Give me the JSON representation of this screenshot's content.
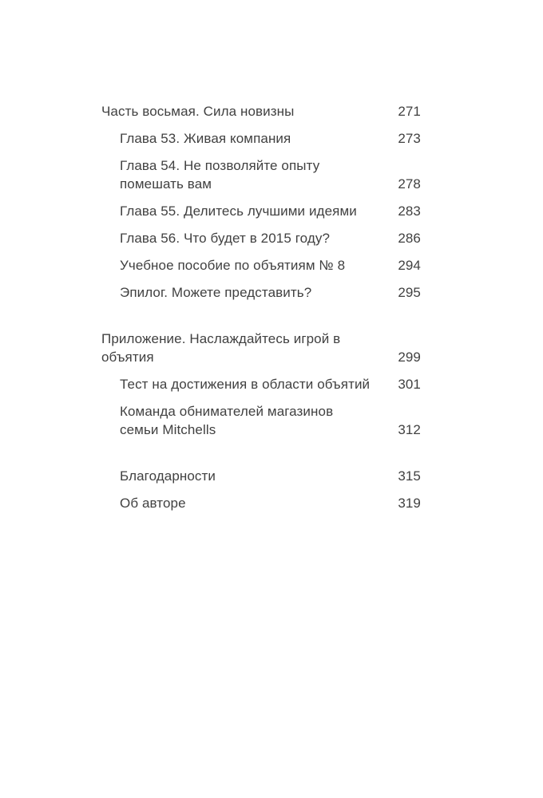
{
  "page": {
    "background": "#ffffff",
    "text_color": "#414141"
  },
  "toc": {
    "groups": [
      {
        "entries": [
          {
            "level": 0,
            "title": "Часть восьмая. Сила новизны",
            "page": "271"
          },
          {
            "level": 1,
            "title": "Глава 53. Живая компания",
            "page": "273"
          },
          {
            "level": 1,
            "title": "Глава 54. Не позволяйте опыту\nпомешать вам",
            "page": "278"
          },
          {
            "level": 1,
            "title": "Глава 55. Делитесь лучшими идеями",
            "page": "283"
          },
          {
            "level": 1,
            "title": "Глава 56. Что будет в 2015 году?",
            "page": "286"
          },
          {
            "level": 1,
            "title": "Учебное пособие по объятиям № 8",
            "page": "294"
          },
          {
            "level": 1,
            "title": "Эпилог. Можете представить?",
            "page": "295"
          }
        ]
      },
      {
        "entries": [
          {
            "level": 0,
            "title": "Приложение. Наслаждайтесь игрой в объятия",
            "page": "299"
          },
          {
            "level": 1,
            "title": "Тест на достижения в области объятий",
            "page": "301"
          },
          {
            "level": 1,
            "title": "Команда обнимателей магазинов\nсемьи Mitchells",
            "page": "312"
          }
        ]
      },
      {
        "entries": [
          {
            "level": 1,
            "title": "Благодарности",
            "page": "315"
          },
          {
            "level": 1,
            "title": "Об авторе",
            "page": "319"
          }
        ]
      }
    ]
  }
}
